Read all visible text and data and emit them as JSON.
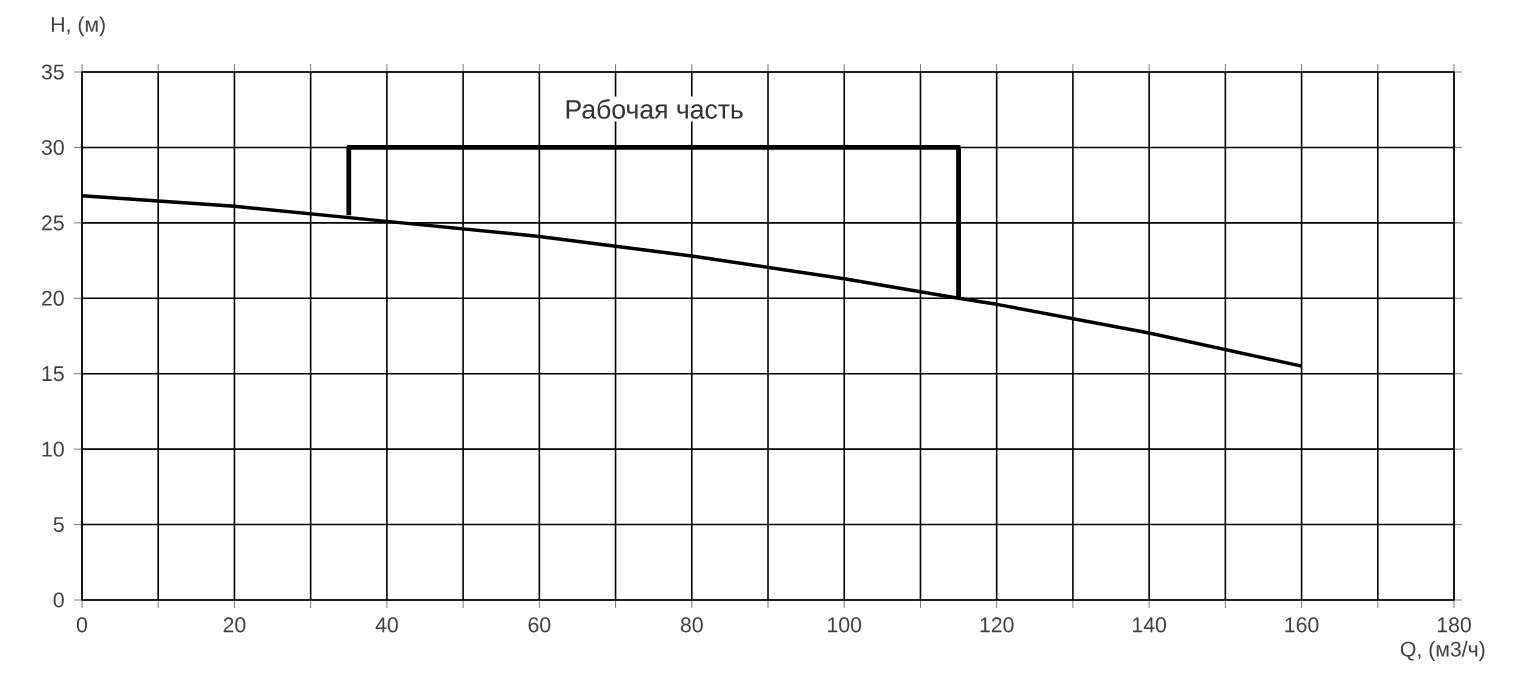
{
  "chart_data": {
    "type": "line",
    "xlabel": "Q, (м3/ч)",
    "ylabel": "H, (м)",
    "xlim": [
      0,
      180
    ],
    "ylim": [
      0,
      35
    ],
    "xticks": [
      0,
      {
        "value": 10,
        "label": null
      },
      20,
      {
        "value": 30,
        "label": null
      },
      40,
      {
        "value": 50,
        "label": null
      },
      60,
      {
        "value": 70,
        "label": null
      },
      80,
      {
        "value": 90,
        "label": null
      },
      100,
      {
        "value": 110,
        "label": null
      },
      120,
      {
        "value": 130,
        "label": null
      },
      140,
      {
        "value": 150,
        "label": null
      },
      160,
      {
        "value": 170,
        "label": null
      },
      180
    ],
    "yticks": [
      0,
      5,
      10,
      15,
      20,
      25,
      30,
      35
    ],
    "grid": true,
    "line_style": "solid",
    "series": [
      {
        "color": "#000000",
        "x": [
          0,
          20,
          40,
          60,
          80,
          100,
          115,
          120,
          140,
          160
        ],
        "values": [
          26.8,
          26.1,
          25.1,
          24.1,
          22.8,
          21.3,
          20.0,
          19.6,
          17.7,
          15.5
        ]
      },
      {
        "color": "#000000",
        "x": [
          35,
          35,
          115,
          115
        ],
        "values": [
          25.5,
          30,
          30,
          20
        ]
      }
    ],
    "annotations": [
      "Рабочая часть"
    ]
  }
}
